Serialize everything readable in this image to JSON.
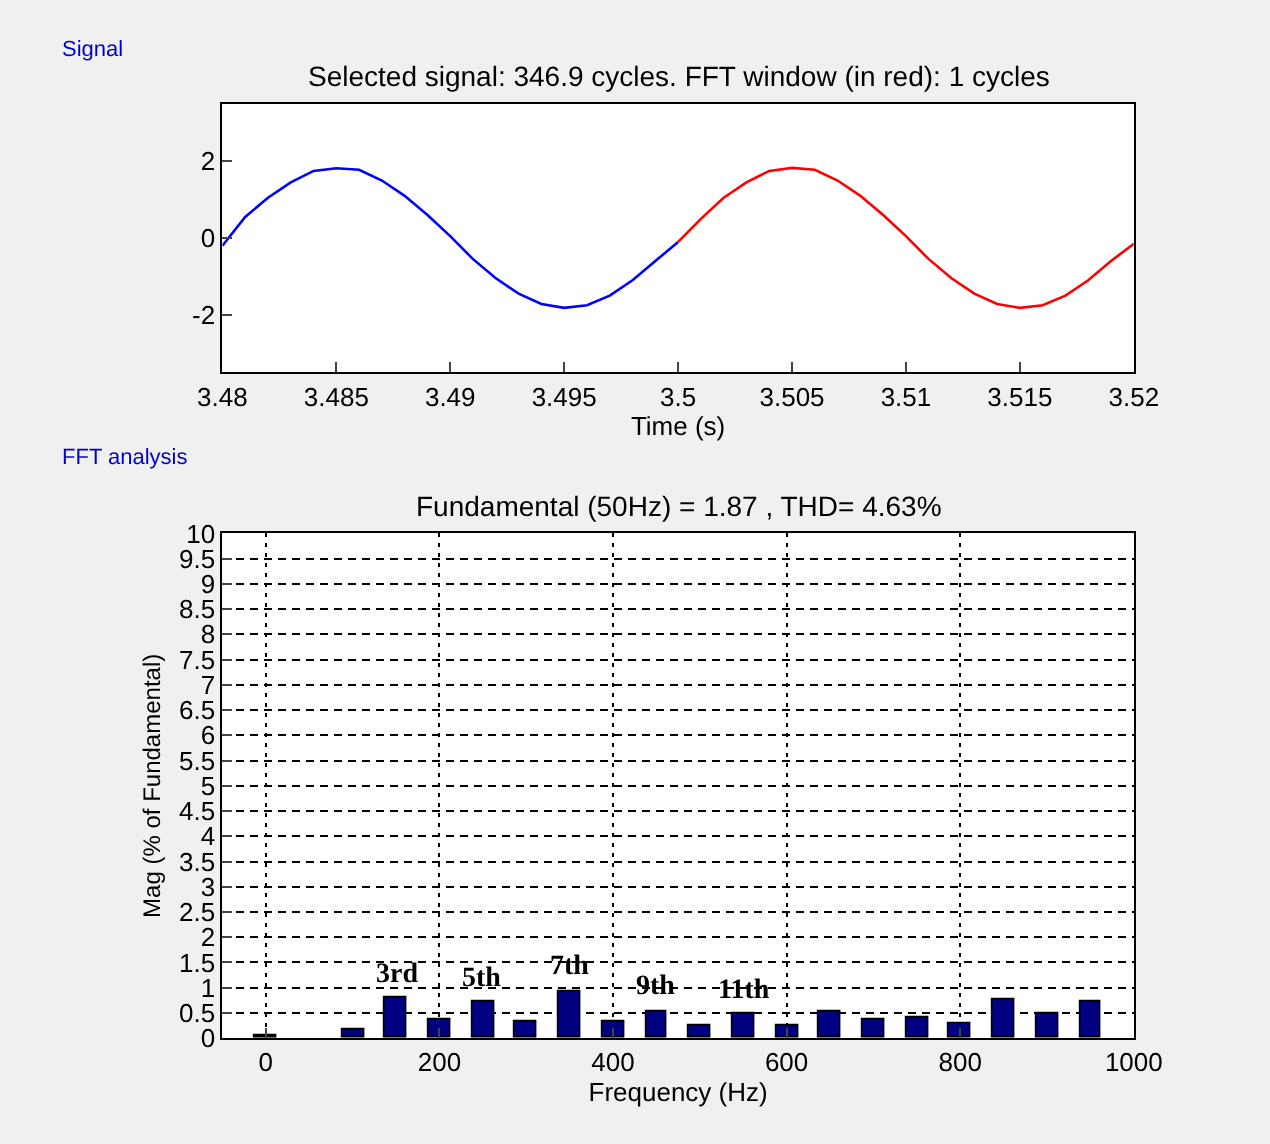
{
  "chart_data": [
    {
      "type": "line",
      "title": "Selected signal: 346.9 cycles. FFT window (in red): 1 cycles",
      "xlabel": "Time (s)",
      "annotations": [
        "Signal"
      ],
      "xlim": [
        3.48,
        3.52
      ],
      "xticks": [
        3.48,
        3.485,
        3.49,
        3.495,
        3.5,
        3.505,
        3.51,
        3.515,
        3.52
      ],
      "ylim": [
        -3.5,
        3.5
      ],
      "yticks": [
        -2,
        0,
        2
      ],
      "grid": false,
      "marker": "none",
      "line_style": "solid",
      "series": [
        {
          "color": "#0000ff",
          "x": [
            3.48,
            3.481,
            3.482,
            3.483,
            3.484,
            3.485,
            3.486,
            3.487,
            3.488,
            3.489,
            3.49,
            3.491,
            3.492,
            3.493,
            3.494,
            3.495,
            3.496,
            3.497,
            3.498,
            3.499,
            3.5
          ],
          "values": [
            -0.2,
            0.55,
            1.05,
            1.45,
            1.75,
            1.82,
            1.78,
            1.5,
            1.1,
            0.6,
            0.05,
            -0.55,
            -1.05,
            -1.45,
            -1.72,
            -1.82,
            -1.75,
            -1.5,
            -1.1,
            -0.6,
            -0.1
          ]
        },
        {
          "color": "#ff0000",
          "x": [
            3.5,
            3.501,
            3.502,
            3.503,
            3.504,
            3.505,
            3.506,
            3.507,
            3.508,
            3.509,
            3.51,
            3.511,
            3.512,
            3.513,
            3.514,
            3.515,
            3.516,
            3.517,
            3.518,
            3.519,
            3.52
          ],
          "values": [
            -0.1,
            0.5,
            1.05,
            1.45,
            1.75,
            1.83,
            1.78,
            1.5,
            1.1,
            0.6,
            0.05,
            -0.55,
            -1.05,
            -1.45,
            -1.72,
            -1.82,
            -1.75,
            -1.5,
            -1.1,
            -0.6,
            -0.15
          ]
        }
      ]
    },
    {
      "type": "bar",
      "title": "Fundamental (50Hz) = 1.87 , THD= 4.63%",
      "xlabel": "Frequency (Hz)",
      "ylabel": "Mag (% of Fundamental)",
      "xlim": [
        -50,
        1000
      ],
      "xticks": [
        0,
        200,
        400,
        600,
        800,
        1000
      ],
      "ylim": [
        0,
        10
      ],
      "yticks": [
        0,
        0.5,
        1,
        1.5,
        2,
        2.5,
        3,
        3.5,
        4,
        4.5,
        5,
        5.5,
        6,
        6.5,
        7,
        7.5,
        8,
        8.5,
        9,
        9.5,
        10
      ],
      "grid": true,
      "x": [
        0,
        50,
        100,
        150,
        200,
        250,
        300,
        350,
        400,
        450,
        500,
        550,
        600,
        650,
        700,
        750,
        800,
        850,
        900,
        950
      ],
      "series": [
        {
          "color": "#000080",
          "values": [
            0.07,
            null,
            0.17,
            0.8,
            0.37,
            0.73,
            0.32,
            0.94,
            0.32,
            0.54,
            0.25,
            0.49,
            0.25,
            0.54,
            0.37,
            0.41,
            0.3,
            0.76,
            0.48,
            0.73
          ]
        }
      ],
      "annotations": [
        "FFT analysis",
        {
          "text": "3rd",
          "x": 150,
          "y": 0.8
        },
        {
          "text": "5th",
          "x": 250,
          "y": 0.73
        },
        {
          "text": "7th",
          "x": 350,
          "y": 0.94
        },
        {
          "text": "9th",
          "x": 450,
          "y": 0.54
        },
        {
          "text": "11th",
          "x": 550,
          "y": 0.49
        }
      ]
    }
  ]
}
